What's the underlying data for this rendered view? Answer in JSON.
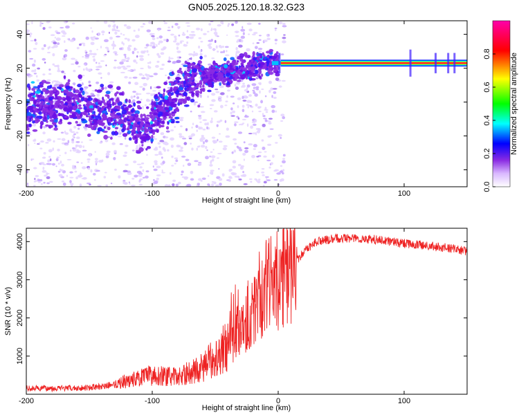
{
  "title": "GN05.2025.120.18.32.G23",
  "chart_data": [
    {
      "type": "heatmap",
      "xlabel": "Height of straight line (km)",
      "ylabel": "Frequency (Hz)",
      "xlim": [
        -200,
        150
      ],
      "ylim": [
        -50,
        48
      ],
      "x_ticks": [
        "-200",
        "-100",
        "0",
        "100"
      ],
      "y_ticks": [
        "-40",
        "-20",
        "0",
        "20",
        "40"
      ],
      "colorbar": {
        "label": "Normalized spectral amplitude",
        "range": [
          0,
          1
        ],
        "ticks": [
          "0.0",
          "0.2",
          "0.4",
          "0.6",
          "0.8"
        ],
        "colors": [
          "#ffffff",
          "#b070ff",
          "#0000ff",
          "#00ffff",
          "#00ff00",
          "#ffff00",
          "#ff0000",
          "#ff00aa"
        ]
      },
      "ridge": {
        "description_points": [
          {
            "x": -200,
            "y": -5
          },
          {
            "x": -170,
            "y": 0
          },
          {
            "x": -140,
            "y": -5
          },
          {
            "x": -120,
            "y": -10
          },
          {
            "x": -105,
            "y": -18
          },
          {
            "x": -95,
            "y": -5
          },
          {
            "x": -75,
            "y": 8
          },
          {
            "x": -50,
            "y": 17
          },
          {
            "x": -25,
            "y": 20
          },
          {
            "x": -10,
            "y": 22
          },
          {
            "x": 0,
            "y": 23
          },
          {
            "x": 150,
            "y": 23
          }
        ],
        "carrier_hz": 23
      }
    },
    {
      "type": "line",
      "xlabel": "Height of straight line (km)",
      "ylabel": "SNR (10 * v/v)",
      "xlim": [
        -200,
        150
      ],
      "ylim": [
        0,
        4350
      ],
      "x_ticks": [
        "-200",
        "-100",
        "0",
        "100"
      ],
      "y_ticks": [
        "1000",
        "2000",
        "3000",
        "4000"
      ],
      "line_color": "#ee2222",
      "envelope": [
        {
          "x": -200,
          "y": 150
        },
        {
          "x": -160,
          "y": 160
        },
        {
          "x": -140,
          "y": 200
        },
        {
          "x": -120,
          "y": 350
        },
        {
          "x": -100,
          "y": 500
        },
        {
          "x": -80,
          "y": 450
        },
        {
          "x": -60,
          "y": 700
        },
        {
          "x": -40,
          "y": 1300
        },
        {
          "x": -20,
          "y": 2200
        },
        {
          "x": -10,
          "y": 2800
        },
        {
          "x": 0,
          "y": 3000
        },
        {
          "x": 10,
          "y": 3300
        },
        {
          "x": 20,
          "y": 3700
        },
        {
          "x": 30,
          "y": 4000
        },
        {
          "x": 50,
          "y": 4100
        },
        {
          "x": 80,
          "y": 4050
        },
        {
          "x": 100,
          "y": 3950
        },
        {
          "x": 130,
          "y": 3850
        },
        {
          "x": 150,
          "y": 3750
        }
      ]
    }
  ]
}
